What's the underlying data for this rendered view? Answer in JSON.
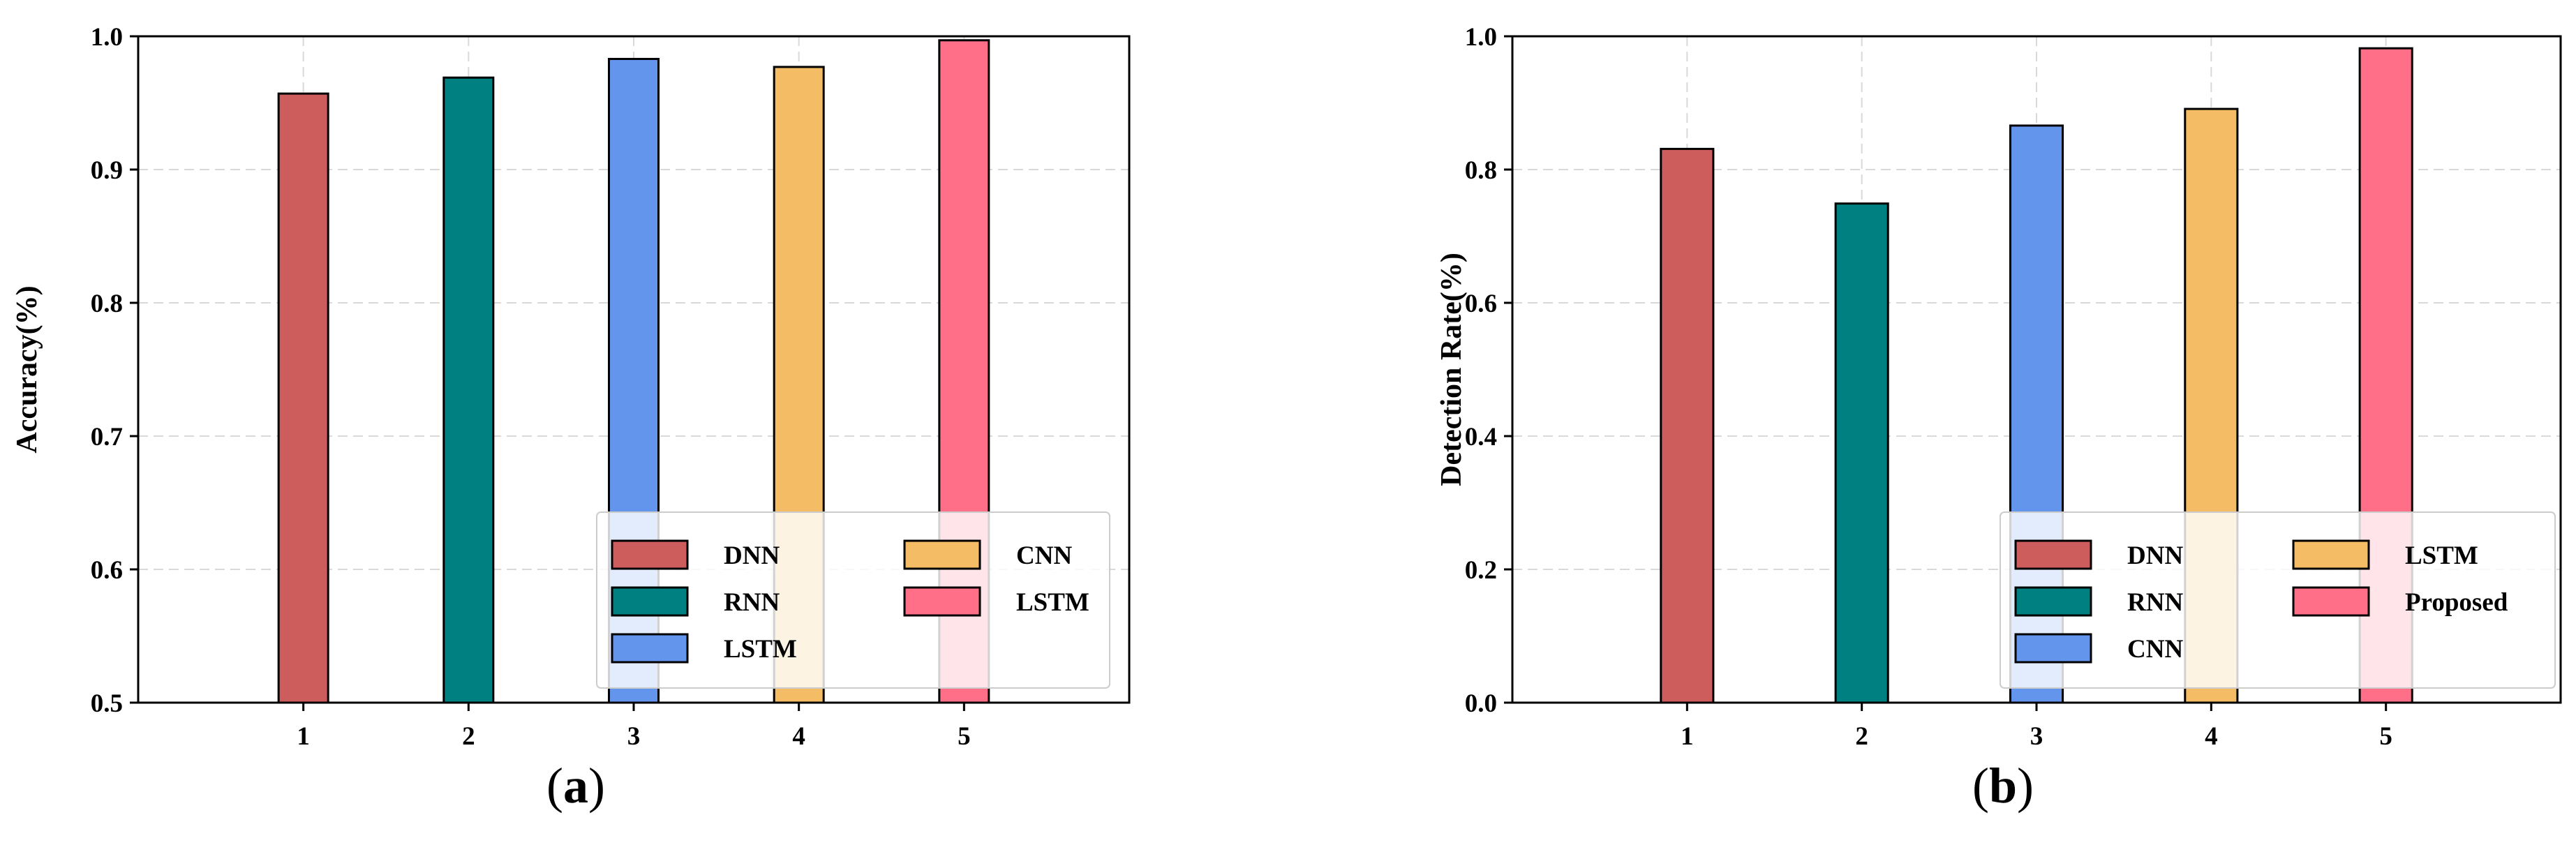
{
  "chart_data": [
    {
      "type": "bar",
      "panel_label": "a",
      "ylabel": "Accuracy(%)",
      "xlabel": "",
      "categories": [
        "1",
        "2",
        "3",
        "4",
        "5"
      ],
      "values": [
        0.957,
        0.969,
        0.983,
        0.977,
        0.997
      ],
      "bar_colors": [
        "#cd5c5c",
        "#008080",
        "#6495ed",
        "#f4bc64",
        "#ff6f87"
      ],
      "ylim": [
        0.5,
        1.0
      ],
      "yticks": [
        0.5,
        0.6,
        0.7,
        0.8,
        0.9,
        1.0
      ],
      "ytick_labels": [
        "0.5",
        "0.6",
        "0.7",
        "0.8",
        "0.9",
        "1.0"
      ],
      "xlim": [
        0,
        6
      ],
      "grid": true,
      "legend_position": "lower-right",
      "legend": [
        {
          "label": "DNN",
          "color": "#cd5c5c"
        },
        {
          "label": "RNN",
          "color": "#008080"
        },
        {
          "label": "LSTM",
          "color": "#6495ed"
        },
        {
          "label": "CNN",
          "color": "#f4bc64"
        },
        {
          "label": "LSTM",
          "color": "#ff6f87"
        }
      ]
    },
    {
      "type": "bar",
      "panel_label": "b",
      "ylabel": "Detection Rate(%)",
      "xlabel": "",
      "categories": [
        "1",
        "2",
        "3",
        "4",
        "5"
      ],
      "values": [
        0.831,
        0.749,
        0.866,
        0.891,
        0.982
      ],
      "bar_colors": [
        "#cd5c5c",
        "#008080",
        "#6495ed",
        "#f4bc64",
        "#ff6f87"
      ],
      "ylim": [
        0.0,
        1.0
      ],
      "yticks": [
        0.0,
        0.2,
        0.4,
        0.6,
        0.8,
        1.0
      ],
      "ytick_labels": [
        "0.0",
        "0.2",
        "0.4",
        "0.6",
        "0.8",
        "1.0"
      ],
      "xlim": [
        0,
        6
      ],
      "grid": true,
      "legend_position": "lower-right",
      "legend": [
        {
          "label": "DNN",
          "color": "#cd5c5c"
        },
        {
          "label": "RNN",
          "color": "#008080"
        },
        {
          "label": "CNN",
          "color": "#6495ed"
        },
        {
          "label": "LSTM",
          "color": "#f4bc64"
        },
        {
          "label": "Proposed",
          "color": "#ff6f87"
        }
      ]
    }
  ]
}
